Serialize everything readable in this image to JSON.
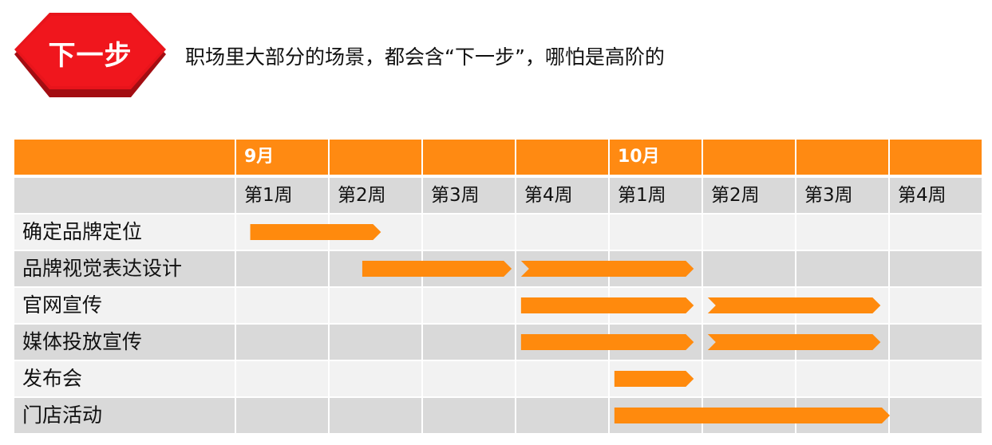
{
  "badge": {
    "label": "下一步",
    "color": "#e8141b"
  },
  "subtitle": "职场里大部分的场景，都会含“下一步”，哪怕是高阶的",
  "months": [
    {
      "label": "9月",
      "start_week": 0
    },
    {
      "label": "10月",
      "start_week": 4
    }
  ],
  "weeks": [
    "第1周",
    "第2周",
    "第3周",
    "第4周",
    "第1周",
    "第2周",
    "第3周",
    "第4周"
  ],
  "tasks": [
    {
      "label": "确定品牌定位",
      "segments": [
        [
          0.15,
          1.55
        ]
      ]
    },
    {
      "label": "品牌视觉表达设计",
      "segments": [
        [
          1.35,
          2.95
        ],
        [
          3.05,
          4.9
        ]
      ]
    },
    {
      "label": "官网宣传",
      "segments": [
        [
          3.05,
          4.9
        ],
        [
          5.05,
          6.9
        ]
      ]
    },
    {
      "label": "媒体投放宣传",
      "segments": [
        [
          3.05,
          4.9
        ],
        [
          5.05,
          6.9
        ]
      ]
    },
    {
      "label": "发布会",
      "segments": [
        [
          4.05,
          4.9
        ]
      ]
    },
    {
      "label": "门店活动",
      "segments": [
        [
          4.05,
          7.0
        ]
      ]
    }
  ],
  "colors": {
    "header": "#ff8a12",
    "bar": "#ff8a0d",
    "row_light": "#f2f2f2",
    "row_dark": "#d9d9d9"
  }
}
